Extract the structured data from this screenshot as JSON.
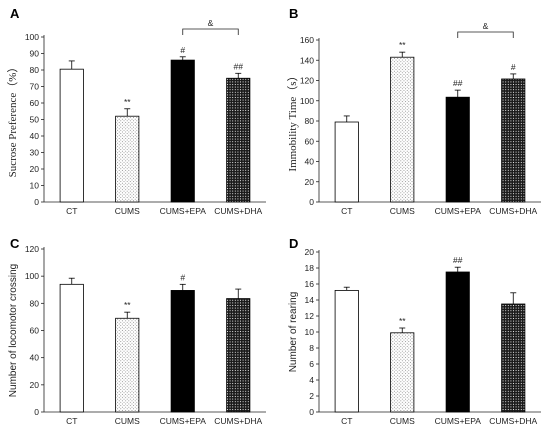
{
  "chart_data": [
    {
      "type": "bar",
      "panel_label": "A",
      "ylabel": "Sucrose Preference（%）",
      "ylim": [
        0,
        100
      ],
      "yticks": [
        "0",
        "10",
        "20",
        "30",
        "40",
        "50",
        "60",
        "70",
        "80",
        "90",
        "100"
      ],
      "categories": [
        "CT",
        "CUMS",
        "CUMS+EPA",
        "CUMS+DHA"
      ],
      "values": [
        80.5,
        52,
        86,
        75
      ],
      "errors": [
        5,
        4.5,
        2,
        3
      ],
      "annotations": [
        "",
        "**",
        "#",
        "##"
      ],
      "fills": [
        "white",
        "dots-light",
        "black",
        "dots-dark"
      ],
      "bracket": {
        "from": 2,
        "to": 3,
        "label": "&"
      }
    },
    {
      "type": "bar",
      "panel_label": "B",
      "ylabel": "Immobility  Time（s）",
      "ylim": [
        0,
        160
      ],
      "yticks": [
        "0",
        "20",
        "40",
        "60",
        "80",
        "100",
        "120",
        "140",
        "160"
      ],
      "categories": [
        "CT",
        "CUMS",
        "CUMS+EPA",
        "CUMS+DHA"
      ],
      "values": [
        79,
        143,
        103.5,
        121.5
      ],
      "errors": [
        6,
        5,
        7,
        5
      ],
      "annotations": [
        "",
        "**",
        "##",
        "#"
      ],
      "fills": [
        "white",
        "dots-light",
        "black",
        "dots-dark"
      ],
      "bracket": {
        "from": 2,
        "to": 3,
        "label": "&"
      }
    },
    {
      "type": "bar",
      "panel_label": "C",
      "ylabel": "Number of locomotor crossing",
      "ylim": [
        0,
        120
      ],
      "yticks": [
        "0",
        "20",
        "40",
        "60",
        "80",
        "100",
        "120"
      ],
      "categories": [
        "CT",
        "CUMS",
        "CUMS+EPA",
        "CUMS+DHA"
      ],
      "values": [
        94,
        69,
        89.5,
        83.5
      ],
      "errors": [
        4.5,
        4.5,
        4.5,
        7
      ],
      "annotations": [
        "",
        "**",
        "#",
        ""
      ],
      "fills": [
        "white",
        "dots-light",
        "black",
        "dots-dark"
      ]
    },
    {
      "type": "bar",
      "panel_label": "D",
      "ylabel": "Number of rearing",
      "ylim": [
        0,
        20
      ],
      "yticks": [
        "0",
        "2",
        "4",
        "6",
        "8",
        "10",
        "12",
        "14",
        "16",
        "18",
        "20"
      ],
      "categories": [
        "CT",
        "CUMS",
        "CUMS+EPA",
        "CUMS+DHA"
      ],
      "values": [
        15.2,
        9.9,
        17.5,
        13.5
      ],
      "errors": [
        0.4,
        0.6,
        0.6,
        1.4
      ],
      "annotations": [
        "",
        "**",
        "##",
        ""
      ],
      "fills": [
        "white",
        "dots-light",
        "black",
        "dots-dark"
      ]
    }
  ],
  "colors": {
    "axis": "#222222",
    "bar_stroke": "#000000",
    "bar_solid": "#000000",
    "bar_white": "#ffffff"
  }
}
